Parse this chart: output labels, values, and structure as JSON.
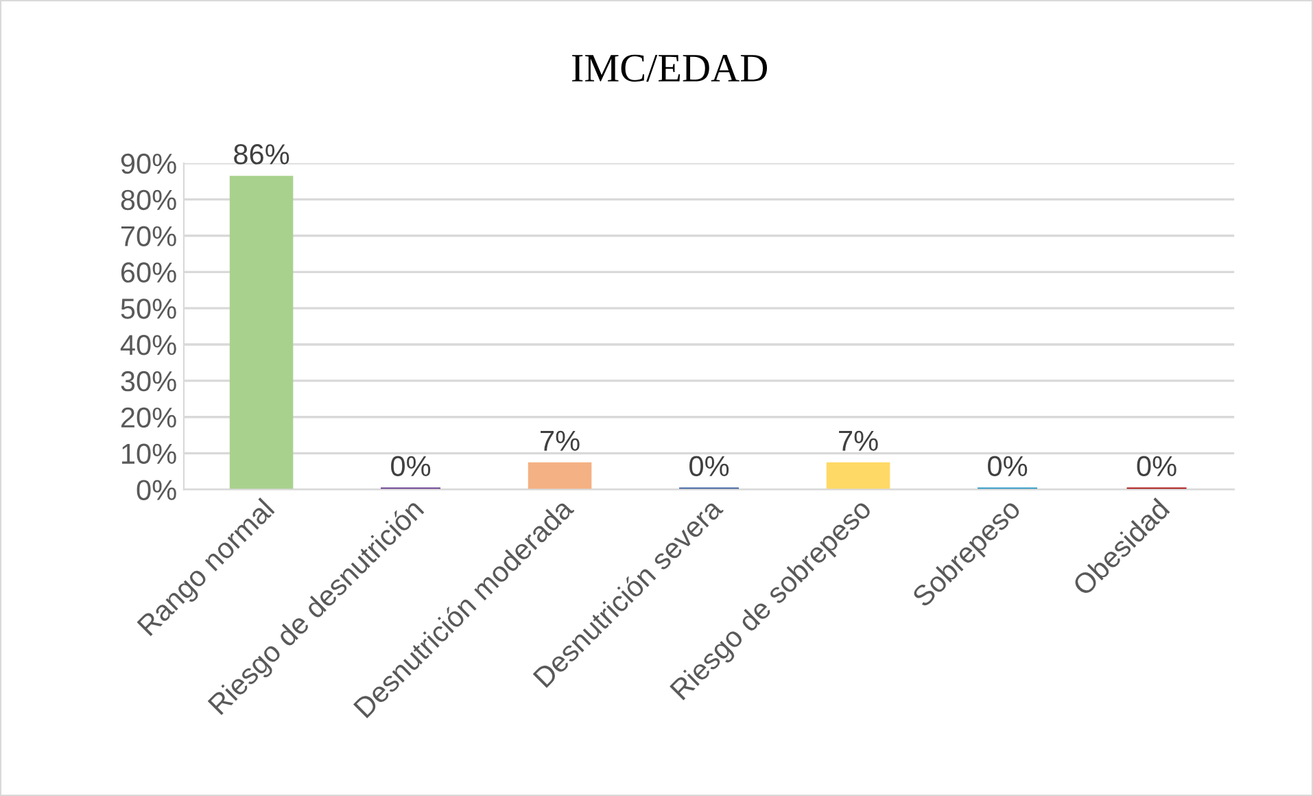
{
  "chart_data": {
    "type": "bar",
    "title": "IMC/EDAD",
    "categories": [
      "Rango normal",
      "Riesgo de desnutrición",
      "Desnutrición moderada",
      "Desnutrición severa",
      "Riesgo de sobrepeso",
      "Sobrepeso",
      "Obesidad"
    ],
    "values": [
      86,
      0,
      7,
      0,
      7,
      0,
      0
    ],
    "colors": [
      "#a9d18e",
      "#5b2c83",
      "#f4b183",
      "#2f5597",
      "#ffd966",
      "#1b8fc0",
      "#a50000"
    ],
    "value_labels": [
      "86%",
      "0%",
      "7%",
      "0%",
      "7%",
      "0%",
      "0%"
    ],
    "ylim": [
      0,
      90
    ],
    "yticks": [
      {
        "value": 0,
        "label": "0%"
      },
      {
        "value": 10,
        "label": "10%"
      },
      {
        "value": 20,
        "label": "20%"
      },
      {
        "value": 30,
        "label": "30%"
      },
      {
        "value": 40,
        "label": "40%"
      },
      {
        "value": 50,
        "label": "50%"
      },
      {
        "value": 60,
        "label": "60%"
      },
      {
        "value": 70,
        "label": "70%"
      },
      {
        "value": 80,
        "label": "80%"
      },
      {
        "value": 90,
        "label": "90%"
      }
    ],
    "grid": "y",
    "legend": false
  }
}
